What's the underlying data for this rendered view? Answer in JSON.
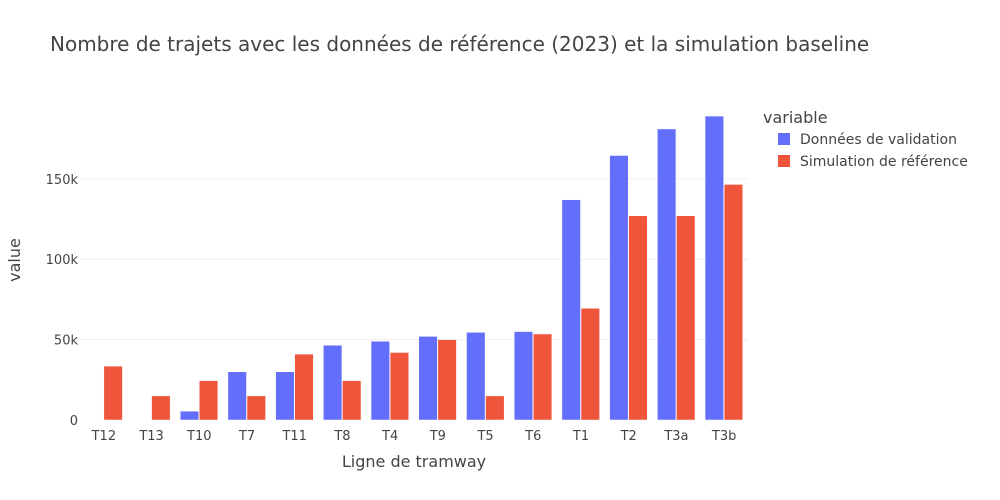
{
  "chart_data": {
    "type": "bar",
    "title": "Nombre de trajets avec les données de référence (2023) et la simulation baseline",
    "xlabel": "Ligne de tramway",
    "ylabel": "value",
    "categories": [
      "T12",
      "T13",
      "T10",
      "T7",
      "T11",
      "T8",
      "T4",
      "T9",
      "T5",
      "T6",
      "T1",
      "T2",
      "T3a",
      "T3b"
    ],
    "ylim": [
      0,
      199000
    ],
    "yticks": [
      0,
      50000,
      100000,
      150000
    ],
    "ytick_labels": [
      "0",
      "50k",
      "100k",
      "150k"
    ],
    "legend_title": "variable",
    "legend_position": "right",
    "grid": true,
    "series": [
      {
        "name": "Données de validation",
        "color": "#636efa",
        "values": [
          0,
          0,
          5500,
          30000,
          30000,
          46500,
          49000,
          52000,
          54500,
          55000,
          137000,
          164500,
          181000,
          189000
        ]
      },
      {
        "name": "Simulation de référence",
        "color": "#ef553b",
        "values": [
          33500,
          15000,
          24500,
          15000,
          41000,
          24500,
          42000,
          50000,
          15000,
          53500,
          69500,
          127000,
          127000,
          146500
        ]
      }
    ]
  }
}
